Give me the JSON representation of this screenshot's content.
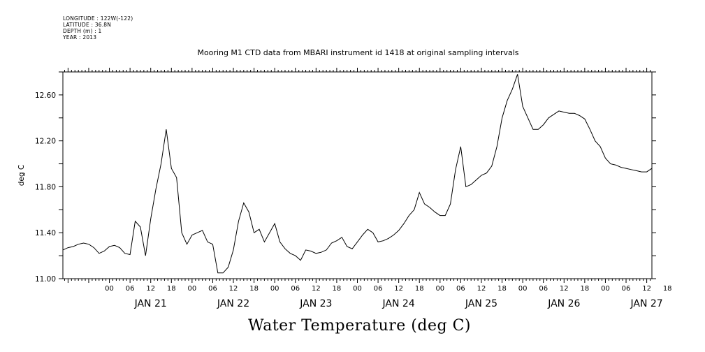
{
  "header": {
    "lines": [
      "LONGITUDE : 122W(-122)",
      "LATITUDE : 36.8N",
      "DEPTH (m) : 1",
      "YEAR : 2013"
    ]
  },
  "chart_data": {
    "type": "line",
    "title": "Mooring M1 CTD data from MBARI instrument id 1418 at original sampling intervals",
    "xlabel": "Water Temperature (deg C)",
    "ylabel": "deg C",
    "ylim": [
      11.0,
      12.8
    ],
    "yticks": [
      "11.00",
      "11.40",
      "11.80",
      "12.20",
      "12.60"
    ],
    "xlim_hours": [
      -13.5,
      157.5
    ],
    "xtick_labels": [
      "00",
      "06",
      "12",
      "18",
      "00",
      "06",
      "12",
      "18",
      "00",
      "06",
      "12",
      "18",
      "00",
      "06",
      "12",
      "18",
      "00",
      "06",
      "12",
      "18",
      "00",
      "06",
      "12",
      "18",
      "00",
      "06",
      "12",
      "18"
    ],
    "day_labels": [
      "JAN 21",
      "JAN 22",
      "JAN 23",
      "JAN 24",
      "JAN 25",
      "JAN 26",
      "JAN 27"
    ],
    "grid": false,
    "series": [
      {
        "name": "",
        "x": [
          -13.5,
          -12,
          -10.5,
          -9,
          -7.5,
          -6,
          -4.5,
          -3,
          -1.5,
          0,
          1.5,
          3,
          4.5,
          6,
          7.5,
          9,
          10.5,
          12,
          13.5,
          15,
          16.5,
          18,
          19.5,
          21,
          22.5,
          24,
          25.5,
          27,
          28.5,
          30,
          31.5,
          33,
          34.5,
          36,
          37.5,
          39,
          40.5,
          42,
          43.5,
          45,
          46.5,
          48,
          49.5,
          51,
          52.5,
          54,
          55.5,
          57,
          58.5,
          60,
          61.5,
          63,
          64.5,
          66,
          67.5,
          69,
          70.5,
          72,
          73.5,
          75,
          76.5,
          78,
          79.5,
          81,
          82.5,
          84,
          85.5,
          87,
          88.5,
          90,
          91.5,
          93,
          94.5,
          96,
          97.5,
          99,
          100.5,
          102,
          103.5,
          105,
          106.5,
          108,
          109.5,
          111,
          112.5,
          114,
          115.5,
          117,
          118.5,
          120,
          121.5,
          123,
          124.5,
          126,
          127.5,
          129,
          130.5,
          132,
          133.5,
          135,
          136.5,
          138,
          139.5,
          141,
          142.5,
          144,
          145.5,
          147,
          148.5,
          150,
          151.5,
          153,
          154.5,
          156,
          157.5
        ],
        "values": [
          11.25,
          11.27,
          11.28,
          11.3,
          11.31,
          11.3,
          11.27,
          11.22,
          11.24,
          11.28,
          11.29,
          11.27,
          11.22,
          11.21,
          11.5,
          11.45,
          11.2,
          11.52,
          11.78,
          12.0,
          12.3,
          11.96,
          11.88,
          11.4,
          11.3,
          11.38,
          11.4,
          11.42,
          11.32,
          11.3,
          11.05,
          11.05,
          11.1,
          11.25,
          11.5,
          11.66,
          11.58,
          11.4,
          11.43,
          11.32,
          11.4,
          11.48,
          11.32,
          11.26,
          11.22,
          11.2,
          11.16,
          11.25,
          11.24,
          11.22,
          11.23,
          11.25,
          11.31,
          11.33,
          11.36,
          11.28,
          11.26,
          11.32,
          11.38,
          11.43,
          11.4,
          11.32,
          11.33,
          11.35,
          11.38,
          11.42,
          11.48,
          11.55,
          11.6,
          11.75,
          11.65,
          11.62,
          11.58,
          11.55,
          11.55,
          11.65,
          11.95,
          12.15,
          11.8,
          11.82,
          11.86,
          11.9,
          11.92,
          11.98,
          12.15,
          12.4,
          12.55,
          12.65,
          12.78,
          12.5,
          12.4,
          12.3,
          12.3,
          12.34,
          12.4,
          12.43,
          12.46,
          12.45,
          12.44,
          12.44,
          12.42,
          12.39,
          12.3,
          12.2,
          12.15,
          12.05,
          12.0,
          11.99,
          11.97,
          11.96,
          11.95,
          11.94,
          11.93,
          11.93,
          11.96
        ]
      }
    ]
  }
}
